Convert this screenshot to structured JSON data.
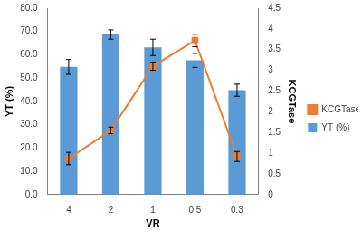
{
  "chart_data": {
    "type": "bar",
    "x_label": "VR",
    "y_label": "YT (%)",
    "y2_label": "KCGTase",
    "categories": [
      "4",
      "2",
      "1",
      "0.5",
      "0.3"
    ],
    "series": [
      {
        "name": "YT (%)",
        "type": "bar",
        "color": "#5b9bd5",
        "axis": "y",
        "values": [
          54.8,
          68.7,
          63.2,
          57.6,
          44.8
        ],
        "errors": [
          3.2,
          2.0,
          3.5,
          3.0,
          2.6
        ]
      },
      {
        "name": "KCGTase",
        "type": "line",
        "color": "#ed7d31",
        "axis": "y2",
        "marker": "square",
        "line_style": "solid",
        "values": [
          0.87,
          1.55,
          3.1,
          3.72,
          0.92
        ],
        "errors": [
          0.15,
          0.08,
          0.1,
          0.15,
          0.12
        ]
      }
    ],
    "ylim": [
      0,
      80
    ],
    "yticks": [
      {
        "value": 0,
        "label": "0.0"
      },
      {
        "value": 10,
        "label": "10.0"
      },
      {
        "value": 20,
        "label": "20.0"
      },
      {
        "value": 30,
        "label": "30.0"
      },
      {
        "value": 40,
        "label": "40.0"
      },
      {
        "value": 50,
        "label": "50.0"
      },
      {
        "value": 60,
        "label": "60.0"
      },
      {
        "value": 70,
        "label": "70.0"
      },
      {
        "value": 80,
        "label": "80.0"
      }
    ],
    "y2lim": [
      0,
      4.5
    ],
    "y2ticks": [
      0,
      0.5,
      1,
      1.5,
      2,
      2.5,
      3,
      3.5,
      4,
      4.5
    ],
    "grid": false,
    "legend": "right"
  }
}
